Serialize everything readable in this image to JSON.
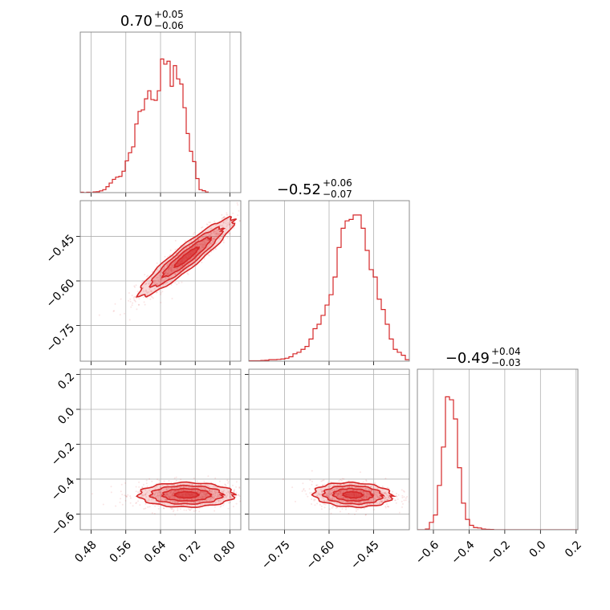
{
  "figure": {
    "color": "#d62728",
    "grid": true
  },
  "chart_data": [
    {
      "panel": "hist-param1",
      "type": "histogram",
      "title_main": "0.70",
      "title_plus": "+0.05",
      "title_minus": "−0.06",
      "xlim": [
        0.455,
        0.825
      ],
      "ylim": [
        0,
        1.0
      ],
      "xticks": [
        0.48,
        0.56,
        0.64,
        0.72,
        0.8
      ],
      "bin_edges_start": 0.455,
      "bin_width": 0.0074,
      "counts": [
        0.003,
        0.0,
        0.003,
        0.0,
        0.005,
        0.006,
        0.012,
        0.02,
        0.04,
        0.065,
        0.09,
        0.105,
        0.11,
        0.145,
        0.215,
        0.27,
        0.31,
        0.465,
        0.55,
        0.56,
        0.635,
        0.69,
        0.63,
        0.625,
        0.69,
        0.905,
        0.87,
        0.89,
        0.72,
        0.86,
        0.77,
        0.735,
        0.575,
        0.4,
        0.28,
        0.21,
        0.095,
        0.02,
        0.013,
        0.004
      ]
    },
    {
      "panel": "scatter-p1-p2",
      "type": "scatter",
      "xlim": [
        0.455,
        0.825
      ],
      "ylim": [
        -0.87,
        -0.33
      ],
      "xticks": [
        0.48,
        0.56,
        0.64,
        0.72,
        0.8
      ],
      "yticks": [
        -0.45,
        -0.6,
        -0.75
      ],
      "ytick_labels": [
        "−0.45",
        "−0.60",
        "−0.75"
      ],
      "center": [
        0.7,
        -0.52
      ],
      "sd": [
        0.055,
        0.066
      ],
      "correlation": 0.93
    },
    {
      "panel": "hist-param2",
      "type": "histogram",
      "title_main": "−0.52",
      "title_plus": "+0.06",
      "title_minus": "−0.07",
      "xlim": [
        -0.87,
        -0.33
      ],
      "ylim": [
        0,
        1.0
      ],
      "xticks": [
        -0.75,
        -0.6,
        -0.45
      ],
      "bin_edges_start": -0.87,
      "bin_width": 0.0135,
      "counts": [
        0.003,
        0.003,
        0.003,
        0.005,
        0.006,
        0.01,
        0.01,
        0.012,
        0.015,
        0.02,
        0.03,
        0.05,
        0.06,
        0.08,
        0.1,
        0.15,
        0.22,
        0.25,
        0.31,
        0.38,
        0.45,
        0.57,
        0.77,
        0.9,
        0.95,
        0.96,
        0.99,
        0.99,
        0.9,
        0.75,
        0.62,
        0.57,
        0.42,
        0.35,
        0.25,
        0.15,
        0.08,
        0.06,
        0.04,
        0.01
      ]
    },
    {
      "panel": "scatter-p1-p3",
      "type": "scatter",
      "xlim": [
        0.455,
        0.825
      ],
      "ylim": [
        -0.69,
        0.23
      ],
      "xticks": [
        0.48,
        0.56,
        0.64,
        0.72,
        0.8
      ],
      "xtick_labels": [
        "0.48",
        "0.56",
        "0.64",
        "0.72",
        "0.80"
      ],
      "yticks": [
        0.2,
        0.0,
        -0.2,
        -0.4,
        -0.6
      ],
      "ytick_labels": [
        "0.2",
        "0.0",
        "−0.2",
        "−0.4",
        "−0.6"
      ],
      "center": [
        0.7,
        -0.49
      ],
      "sd": [
        0.055,
        0.035
      ],
      "correlation": 0.0
    },
    {
      "panel": "scatter-p2-p3",
      "type": "scatter",
      "xlim": [
        -0.87,
        -0.33
      ],
      "ylim": [
        -0.69,
        0.23
      ],
      "xticks": [
        -0.75,
        -0.6,
        -0.45
      ],
      "xtick_labels": [
        "−0.75",
        "−0.60",
        "−0.45"
      ],
      "yticks": [
        0.2,
        0.0,
        -0.2,
        -0.4,
        -0.6
      ],
      "center": [
        -0.52,
        -0.49
      ],
      "sd": [
        0.066,
        0.035
      ],
      "correlation": -0.1
    },
    {
      "panel": "hist-param3",
      "type": "histogram",
      "title_main": "−0.49",
      "title_plus": "+0.04",
      "title_minus": "−0.03",
      "xlim": [
        -0.69,
        0.21
      ],
      "ylim": [
        0,
        1.0
      ],
      "xticks": [
        -0.6,
        -0.4,
        -0.2,
        0.0,
        0.2
      ],
      "xtick_labels": [
        "−0.6",
        "−0.4",
        "−0.2",
        "0.0",
        "0.2"
      ],
      "bin_edges_start": -0.69,
      "bin_width": 0.0225,
      "counts": [
        0.0,
        0.0,
        0.005,
        0.05,
        0.1,
        0.3,
        0.56,
        0.9,
        0.88,
        0.75,
        0.42,
        0.18,
        0.07,
        0.03,
        0.015,
        0.012,
        0.005,
        0.003,
        0.002,
        0.0,
        0.0,
        0.0,
        0.0,
        0.0,
        0.0,
        0.0,
        0.0,
        0.0,
        0.0,
        0.0,
        0.0,
        0.0,
        0.0,
        0.0,
        0.0,
        0.0,
        0.0,
        0.0,
        0.0,
        0.0
      ]
    }
  ]
}
